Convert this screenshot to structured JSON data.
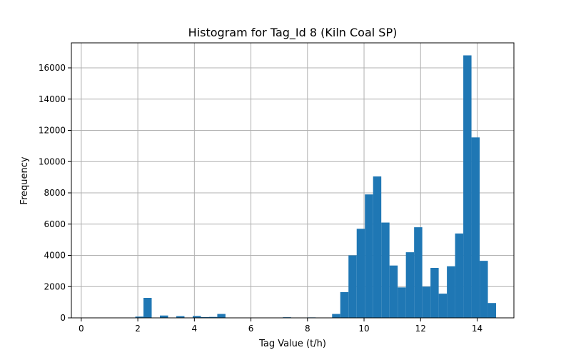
{
  "chart_data": {
    "type": "bar",
    "title": "Histogram for Tag_Id 8 (Kiln Coal SP)",
    "xlabel": "Tag Value (t/h)",
    "ylabel": "Frequency",
    "xlim": [
      -0.35,
      15.3
    ],
    "ylim": [
      0,
      17600
    ],
    "xticks": [
      0,
      2,
      4,
      6,
      8,
      10,
      12,
      14
    ],
    "yticks": [
      0,
      2000,
      4000,
      6000,
      8000,
      10000,
      12000,
      14000,
      16000
    ],
    "grid": true,
    "bar_color": "#1f77b4",
    "bin_width": 0.29,
    "bin_starts": [
      1.91,
      2.2,
      2.49,
      2.78,
      3.07,
      3.36,
      3.65,
      3.94,
      4.23,
      4.52,
      4.81,
      5.1,
      5.39,
      5.68,
      5.97,
      6.26,
      6.55,
      6.84,
      7.13,
      7.42,
      7.71,
      8.0,
      8.29,
      8.58,
      8.87,
      9.16,
      9.45,
      9.74,
      10.03,
      10.32,
      10.61,
      10.9,
      11.19,
      11.48,
      11.77,
      12.06,
      12.35,
      12.64,
      12.93,
      13.22,
      13.51,
      13.8,
      14.09,
      14.38
    ],
    "values": [
      80,
      1280,
      0,
      150,
      0,
      110,
      0,
      120,
      50,
      60,
      250,
      0,
      0,
      0,
      0,
      0,
      0,
      0,
      40,
      0,
      0,
      30,
      0,
      0,
      250,
      1650,
      4000,
      5700,
      7900,
      9050,
      6100,
      3350,
      1950,
      4200,
      5800,
      2000,
      3200,
      1550,
      3300,
      5400,
      16800,
      11550,
      3650,
      950
    ]
  }
}
